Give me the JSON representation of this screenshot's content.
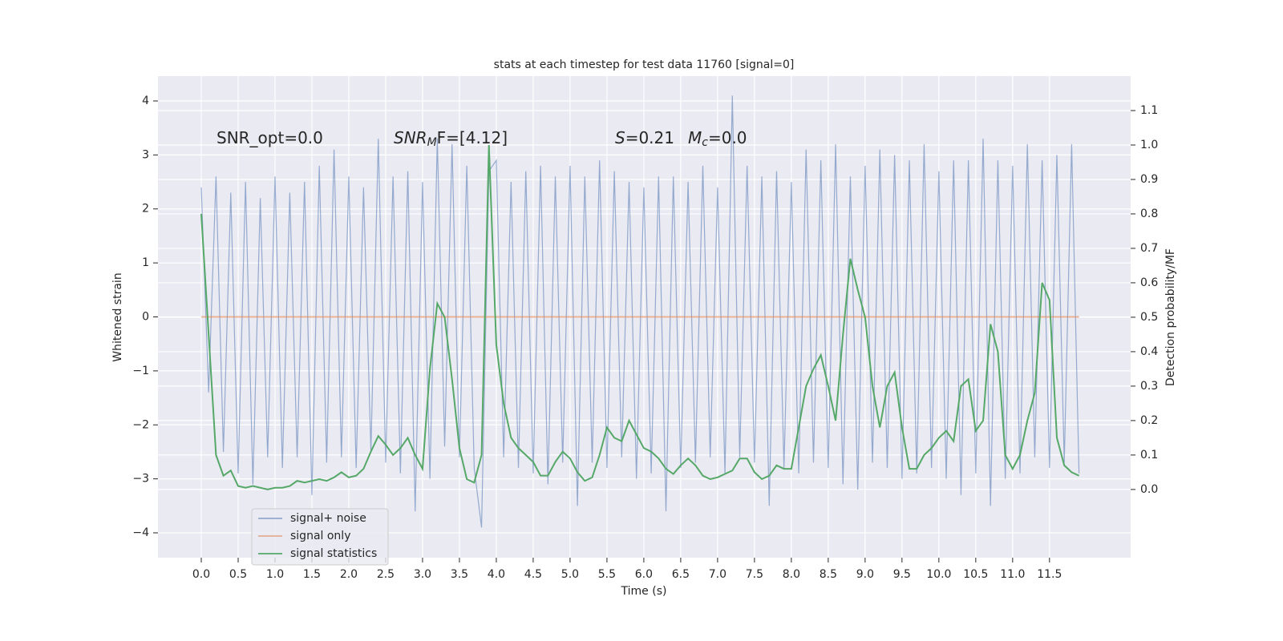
{
  "chart_data": {
    "type": "line",
    "title": "stats at each timestep for test data 11760 [signal=0]",
    "xlabel": "Time (s)",
    "ylabel": "Whitened strain",
    "y2label": "Detection probability/MF",
    "annotations": [
      {
        "text": "SNR_opt=0.0"
      },
      {
        "text": "SNR",
        "sub": "M",
        "after": "F=[4.12]"
      },
      {
        "text": "S",
        "after": "=0.21"
      },
      {
        "text": "M",
        "sub": "c",
        "after": "=0.0"
      }
    ],
    "xlim": [
      -0.587,
      12.6
    ],
    "ylim": [
      -4.46,
      4.46
    ],
    "y2lim": [
      -0.198,
      1.2
    ],
    "xticks": [
      {
        "value": 0,
        "label": "0.0"
      },
      0.5,
      {
        "value": 1,
        "label": "1.0"
      },
      1.5,
      {
        "value": 2,
        "label": "2.0"
      },
      2.5,
      {
        "value": 3,
        "label": "3.0"
      },
      3.5,
      {
        "value": 4,
        "label": "4.0"
      },
      4.5,
      {
        "value": 5,
        "label": "5.0"
      },
      5.5,
      {
        "value": 6,
        "label": "6.0"
      },
      6.5,
      {
        "value": 7,
        "label": "7.0"
      },
      7.5,
      {
        "value": 8,
        "label": "8.0"
      },
      8.5,
      {
        "value": 9,
        "label": "9.0"
      },
      9.5,
      {
        "value": 10,
        "label": "10.0"
      },
      10.5,
      {
        "value": 11,
        "label": "11.0"
      },
      11.5
    ],
    "yticks": [
      {
        "value": -4,
        "label": "−4"
      },
      {
        "value": -3,
        "label": "−3"
      },
      {
        "value": -2,
        "label": "−2"
      },
      {
        "value": -1,
        "label": "−1"
      },
      0,
      1,
      2,
      3,
      4
    ],
    "y2ticks": [
      {
        "value": 0,
        "label": "0.0"
      },
      0.1,
      0.2,
      0.3,
      0.4,
      0.5,
      0.6,
      0.7,
      0.8,
      0.9,
      {
        "value": 1,
        "label": "1.0"
      },
      1.1
    ],
    "grid": true,
    "x": [
      0,
      0.1,
      0.2,
      0.3,
      0.4,
      0.5,
      0.6,
      0.7,
      0.8,
      0.9,
      1,
      1.1,
      1.2,
      1.3,
      1.4,
      1.5,
      1.6,
      1.7,
      1.8,
      1.9,
      2,
      2.1,
      2.2,
      2.3,
      2.4,
      2.5,
      2.6,
      2.7,
      2.8,
      2.9,
      3,
      3.1,
      3.2,
      3.3,
      3.4,
      3.5,
      3.6,
      3.7,
      3.8,
      3.9,
      4,
      4.1,
      4.2,
      4.3,
      4.4,
      4.5,
      4.6,
      4.7,
      4.8,
      4.9,
      5,
      5.1,
      5.2,
      5.3,
      5.4,
      5.5,
      5.6,
      5.7,
      5.8,
      5.9,
      6,
      6.1,
      6.2,
      6.3,
      6.4,
      6.5,
      6.6,
      6.7,
      6.8,
      6.9,
      7,
      7.1,
      7.2,
      7.3,
      7.4,
      7.5,
      7.6,
      7.7,
      7.8,
      7.9,
      8,
      8.1,
      8.2,
      8.3,
      8.4,
      8.5,
      8.6,
      8.7,
      8.8,
      8.9,
      9,
      9.1,
      9.2,
      9.3,
      9.4,
      9.5,
      9.6,
      9.7,
      9.8,
      9.9,
      10,
      10.1,
      10.2,
      10.3,
      10.4,
      10.5,
      10.6,
      10.7,
      10.8,
      10.9,
      11,
      11.1,
      11.2,
      11.3,
      11.4,
      11.5,
      11.6,
      11.7,
      11.8,
      11.9
    ],
    "series": [
      {
        "name": "signal+ noise",
        "color": "#4c72b0",
        "values": [
          2.4,
          -1.4,
          2.6,
          -2.5,
          2.3,
          -2.9,
          2.5,
          -3.1,
          2.2,
          -2.6,
          2.6,
          -2.8,
          2.3,
          -2.6,
          2.5,
          -3.3,
          2.8,
          -2.7,
          3.1,
          -2.6,
          2.6,
          -2.8,
          2.4,
          -2.5,
          3.3,
          -2.7,
          2.6,
          -2.9,
          2.7,
          -3.6,
          2.5,
          -3.0,
          3.3,
          -2.4,
          3.2,
          -2.6,
          2.8,
          -2.8,
          -3.9,
          2.7,
          2.9,
          -2.6,
          2.5,
          -2.8,
          2.7,
          -2.9,
          2.8,
          -3.1,
          2.6,
          -2.7,
          2.8,
          -3.5,
          2.6,
          -2.7,
          2.9,
          -2.8,
          2.7,
          -2.6,
          2.5,
          -3.0,
          2.4,
          -2.9,
          2.6,
          -3.6,
          2.6,
          -2.8,
          2.5,
          -2.7,
          2.8,
          -2.6,
          2.4,
          -2.9,
          4.1,
          -2.6,
          2.8,
          -2.7,
          2.6,
          -3.5,
          2.7,
          -2.8,
          2.5,
          -2.9,
          3.1,
          -2.7,
          2.9,
          -2.8,
          3.2,
          -3.1,
          2.6,
          -3.2,
          2.8,
          -2.7,
          3.1,
          -2.8,
          3.0,
          -3.0,
          2.9,
          -2.9,
          3.2,
          -2.8,
          2.7,
          -3.0,
          2.9,
          -3.3,
          2.9,
          -2.9,
          3.3,
          -3.5,
          2.9,
          -3.0,
          2.8,
          -2.9,
          3.2,
          -2.6,
          2.9,
          -2.8,
          3.0,
          -2.7,
          3.2,
          -2.9
        ]
      },
      {
        "name": "signal only",
        "color": "#dd8452",
        "x": [
          0,
          11.9
        ],
        "values": [
          0,
          0
        ]
      },
      {
        "name": "signal statistics",
        "color": "#55a868",
        "axis": "y2",
        "values": [
          0.8,
          0.45,
          0.1,
          0.04,
          0.055,
          0.01,
          0.005,
          0.01,
          0.005,
          0.0,
          0.005,
          0.005,
          0.01,
          0.025,
          0.02,
          0.025,
          0.03,
          0.025,
          0.035,
          0.05,
          0.035,
          0.04,
          0.06,
          0.11,
          0.155,
          0.13,
          0.1,
          0.12,
          0.15,
          0.1,
          0.06,
          0.35,
          0.54,
          0.5,
          0.32,
          0.12,
          0.03,
          0.02,
          0.1,
          1.0,
          0.42,
          0.25,
          0.15,
          0.12,
          0.1,
          0.08,
          0.04,
          0.04,
          0.08,
          0.11,
          0.09,
          0.05,
          0.025,
          0.035,
          0.1,
          0.18,
          0.15,
          0.14,
          0.2,
          0.16,
          0.12,
          0.11,
          0.09,
          0.06,
          0.045,
          0.07,
          0.09,
          0.07,
          0.04,
          0.03,
          0.035,
          0.045,
          0.055,
          0.09,
          0.09,
          0.05,
          0.03,
          0.04,
          0.07,
          0.06,
          0.06,
          0.18,
          0.3,
          0.35,
          0.39,
          0.3,
          0.2,
          0.45,
          0.67,
          0.58,
          0.5,
          0.3,
          0.18,
          0.3,
          0.34,
          0.18,
          0.06,
          0.06,
          0.1,
          0.12,
          0.15,
          0.17,
          0.14,
          0.3,
          0.32,
          0.17,
          0.2,
          0.48,
          0.4,
          0.1,
          0.06,
          0.1,
          0.2,
          0.28,
          0.6,
          0.55,
          0.15,
          0.07,
          0.05,
          0.04
        ]
      }
    ]
  }
}
